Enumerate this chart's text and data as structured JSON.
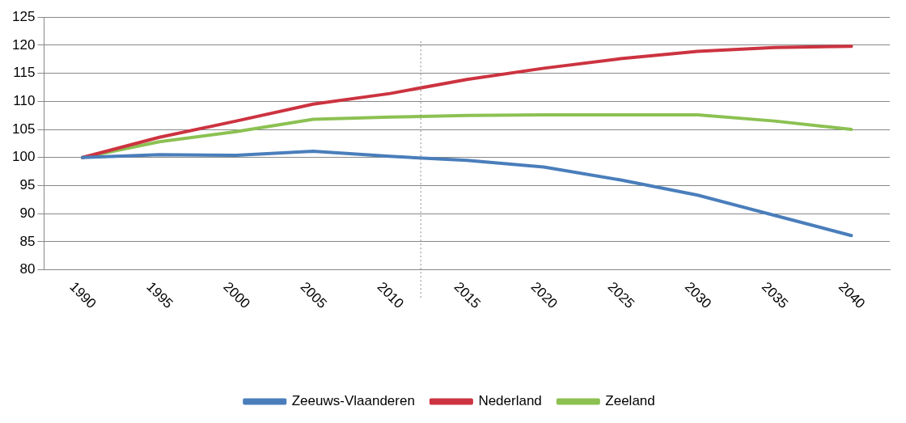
{
  "chart_data": {
    "type": "line",
    "x": [
      1990,
      1995,
      2000,
      2005,
      2010,
      2015,
      2020,
      2025,
      2030,
      2035,
      2040
    ],
    "series": [
      {
        "name": "Zeeuws-Vlaanderen",
        "color": "#4a7ebb",
        "values": [
          100,
          100.5,
          100.4,
          101.1,
          100.2,
          99.5,
          98.3,
          96.0,
          93.3,
          89.7,
          86.1
        ]
      },
      {
        "name": "Nederland",
        "color": "#cc3340",
        "values": [
          100,
          103.6,
          106.5,
          109.5,
          111.4,
          113.9,
          115.9,
          117.6,
          118.9,
          119.6,
          119.8
        ]
      },
      {
        "name": "Zeeland",
        "color": "#8cc152",
        "values": [
          100,
          102.8,
          104.6,
          106.8,
          107.2,
          107.5,
          107.6,
          107.6,
          107.6,
          106.5,
          105
        ]
      }
    ],
    "xlim": [
      1987.5,
      2042.5
    ],
    "xticks": [
      1990,
      1995,
      2000,
      2005,
      2010,
      2015,
      2020,
      2025,
      2030,
      2035,
      2040
    ],
    "ylim": [
      80,
      125
    ],
    "yticks": [
      80,
      85,
      90,
      95,
      100,
      105,
      110,
      115,
      120,
      125
    ],
    "ref_lines": [
      {
        "axis": "x",
        "value": 2012,
        "color": "#888888",
        "line_style": "dotted"
      }
    ],
    "grid": "y",
    "legend": "bottom",
    "marker": "none",
    "line_style": "solid"
  }
}
